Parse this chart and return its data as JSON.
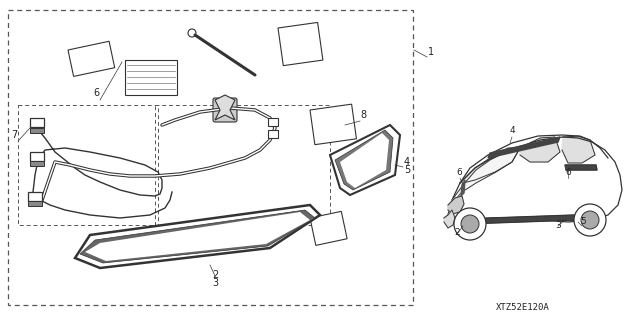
{
  "bg_color": "#ffffff",
  "fig_width": 6.4,
  "fig_height": 3.19,
  "title_text": "XTZ52E120A",
  "label_color": "#222222",
  "line_color": "#333333",
  "dpi": 100
}
